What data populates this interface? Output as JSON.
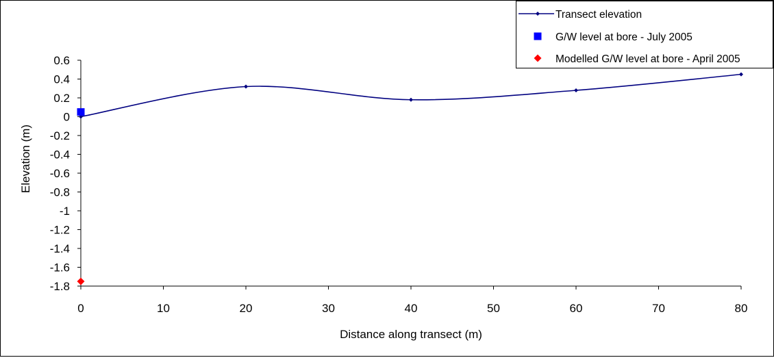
{
  "chart_data": {
    "type": "line",
    "title": "",
    "xlabel": "Distance along transect (m)",
    "ylabel": "Elevation (m)",
    "xlim": [
      0,
      80
    ],
    "ylim": [
      -1.8,
      0.6
    ],
    "x_ticks": [
      0,
      10,
      20,
      30,
      40,
      50,
      60,
      70,
      80
    ],
    "y_ticks": [
      0.6,
      0.4,
      0.2,
      0,
      -0.2,
      -0.4,
      -0.6,
      -0.8,
      -1,
      -1.2,
      -1.4,
      -1.6,
      -1.8
    ],
    "grid": false,
    "legend_position": "top-right",
    "series": [
      {
        "name": "Transect elevation",
        "kind": "line",
        "color": "#000080",
        "marker": "diamond-small",
        "x": [
          0,
          20,
          40,
          60,
          80
        ],
        "y": [
          0,
          0.32,
          0.18,
          0.28,
          0.45
        ]
      },
      {
        "name": "G/W level at bore - July 2005",
        "kind": "marker",
        "color": "#0000FF",
        "marker": "square",
        "x": [
          0
        ],
        "y": [
          0.05
        ]
      },
      {
        "name": "Modelled G/W level at bore - April 2005",
        "kind": "marker",
        "color": "#FF0000",
        "marker": "diamond",
        "x": [
          0
        ],
        "y": [
          -1.75
        ]
      }
    ]
  }
}
